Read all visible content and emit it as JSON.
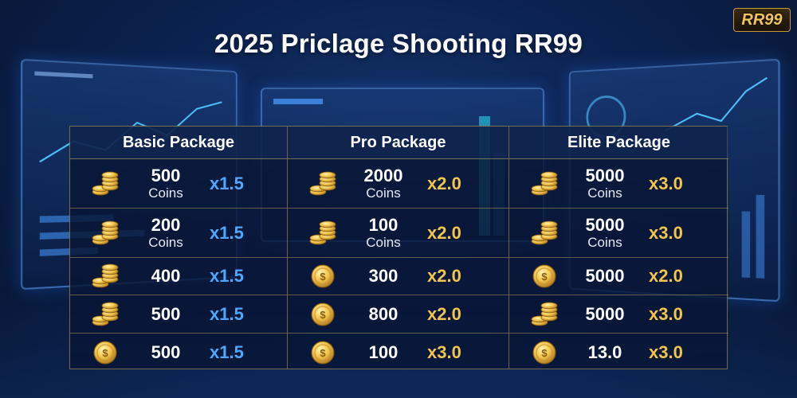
{
  "title": "2025 Priclage Shooting RR99",
  "brand": "RR99",
  "colors": {
    "blue_multiplier": "#4fa8ff",
    "gold_multiplier": "#f2c54b",
    "border_gold": "#d2af5a"
  },
  "packages": [
    {
      "name": "Basic Package",
      "rows": [
        {
          "icon": "coin-stack-icon",
          "amount": "500",
          "unit": "Coins",
          "multiplier": "x1.5"
        },
        {
          "icon": "coin-stack-icon",
          "amount": "200",
          "unit": "Coins",
          "multiplier": "x1.5"
        },
        {
          "icon": "coin-stack-icon",
          "amount": "400",
          "unit": "",
          "multiplier": "x1.5"
        },
        {
          "icon": "coin-stack-icon",
          "amount": "500",
          "unit": "",
          "multiplier": "x1.5"
        },
        {
          "icon": "coin-icon",
          "amount": "500",
          "unit": "",
          "multiplier": "x1.5"
        }
      ]
    },
    {
      "name": "Pro Package",
      "rows": [
        {
          "icon": "coin-stack-icon",
          "amount": "2000",
          "unit": "Coins",
          "multiplier": "x2.0"
        },
        {
          "icon": "coin-stack-icon",
          "amount": "100",
          "unit": "Coins",
          "multiplier": "x2.0"
        },
        {
          "icon": "coin-icon",
          "amount": "300",
          "unit": "",
          "multiplier": "x2.0"
        },
        {
          "icon": "coin-icon",
          "amount": "800",
          "unit": "",
          "multiplier": "x2.0"
        },
        {
          "icon": "coin-icon",
          "amount": "100",
          "unit": "",
          "multiplier": "x3.0"
        }
      ]
    },
    {
      "name": "Elite Package",
      "rows": [
        {
          "icon": "coin-stack-icon",
          "amount": "5000",
          "unit": "Coins",
          "multiplier": "x3.0"
        },
        {
          "icon": "coin-stack-icon",
          "amount": "5000",
          "unit": "Coins",
          "multiplier": "x3.0"
        },
        {
          "icon": "coin-icon",
          "amount": "5000",
          "unit": "",
          "multiplier": "x2.0"
        },
        {
          "icon": "coin-stack-icon",
          "amount": "5000",
          "unit": "",
          "multiplier": "x3.0"
        },
        {
          "icon": "coin-icon",
          "amount": "13.0",
          "unit": "",
          "multiplier": "x3.0"
        }
      ]
    }
  ]
}
